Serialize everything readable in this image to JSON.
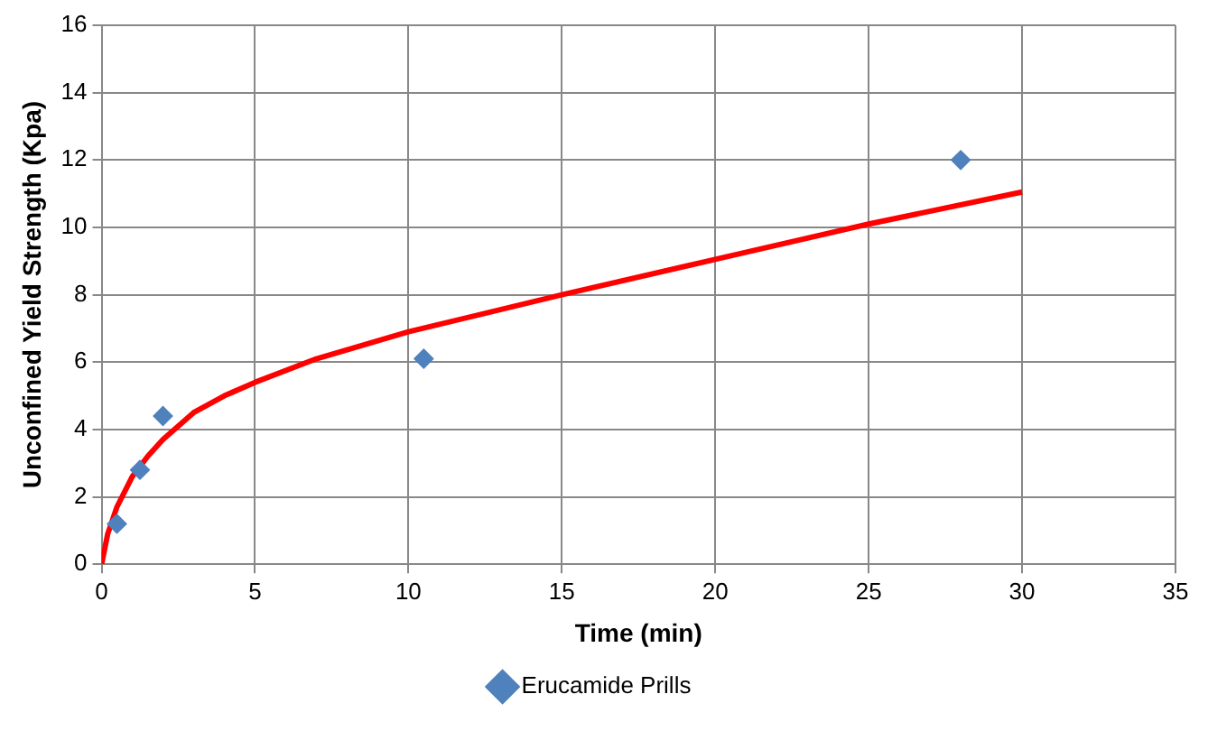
{
  "chart_data": {
    "type": "scatter",
    "xlabel": "Time (min)",
    "ylabel": "Unconfined Yield Strength (Kpa)",
    "xlim": [
      0,
      35
    ],
    "xticks": [
      0,
      5,
      10,
      15,
      20,
      25,
      30,
      35
    ],
    "ylim": [
      0,
      16
    ],
    "yticks": [
      0,
      2,
      4,
      6,
      8,
      10,
      12,
      14,
      16
    ],
    "grid": true,
    "legend": "bottom",
    "marker": "diamond",
    "series": [
      {
        "name": "Erucamide Prills",
        "color": "#4f81bd",
        "x": [
          0.5,
          1.25,
          2,
          10.5,
          28
        ],
        "values": [
          1.2,
          2.8,
          4.4,
          6.1,
          12
        ]
      },
      {
        "type": "line",
        "color": "#ff0000",
        "marker": "none",
        "x": [
          0,
          0.2,
          0.5,
          1,
          1.5,
          2,
          3,
          4,
          5,
          7,
          10,
          15,
          20,
          25,
          30
        ],
        "values": [
          0,
          0.9,
          1.7,
          2.6,
          3.2,
          3.7,
          4.5,
          5.0,
          5.4,
          6.1,
          6.9,
          8.0,
          9.05,
          10.1,
          11.05
        ]
      }
    ]
  }
}
